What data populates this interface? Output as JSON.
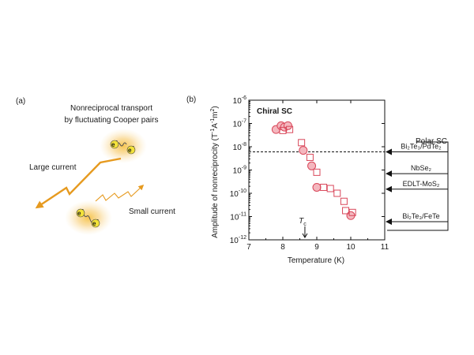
{
  "panel_a": {
    "label": "(a)",
    "title_line1": "Nonreciprocal transport",
    "title_line2": "by fluctuating Cooper pairs",
    "large_current": "Large current",
    "small_current": "Small current",
    "electron": "e",
    "electron_charge": "-"
  },
  "panel_b": {
    "label": "(b)",
    "polar_box_title": "Polar SC",
    "polar_entries": [
      {
        "label": "Bi₂Te₃/PdTe₂",
        "value": 6e-09
      },
      {
        "label": "NbSe₂",
        "value": 7e-10
      },
      {
        "label": "EDLT-MoS₂",
        "value": 1.5e-10
      },
      {
        "label": "Bi₂Te₃/FeTe",
        "value": 6e-12
      }
    ]
  },
  "chart_data": {
    "type": "scatter",
    "title": "",
    "annotation": "Chiral SC",
    "tc_label": "T",
    "tc_subscript": "c",
    "tc_arrow": "↓",
    "tc_value": 8.65,
    "dashed_line_value": 6e-09,
    "xlabel": "Temperature (K)",
    "ylabel_main": "Amplitude of  nonreciprocity  (T",
    "ylabel_units": [
      "T",
      "-1",
      "A",
      "-1",
      "m",
      "2"
    ],
    "xlim": [
      7,
      11
    ],
    "ylim_log10": [
      -12,
      -6
    ],
    "x_ticks": [
      7,
      8,
      9,
      10,
      11
    ],
    "y_tick_exponents": [
      -12,
      -11,
      -10,
      -9,
      -8,
      -7,
      -6
    ],
    "y_tick_base": "10",
    "series": [
      {
        "name": "circles",
        "marker": "circle-filled",
        "points": [
          {
            "x": 7.8,
            "y": 5.5e-08
          },
          {
            "x": 7.95,
            "y": 8e-08
          },
          {
            "x": 8.05,
            "y": 7e-08
          },
          {
            "x": 8.15,
            "y": 8e-08
          },
          {
            "x": 8.6,
            "y": 7e-09
          },
          {
            "x": 8.85,
            "y": 1.5e-09
          },
          {
            "x": 9.0,
            "y": 1.8e-10
          },
          {
            "x": 10.0,
            "y": 1.1e-11
          }
        ]
      },
      {
        "name": "squares",
        "marker": "square-open",
        "points": [
          {
            "x": 8.0,
            "y": 5e-08
          },
          {
            "x": 8.2,
            "y": 5.5e-08
          },
          {
            "x": 8.55,
            "y": 1.5e-08
          },
          {
            "x": 8.8,
            "y": 3.5e-09
          },
          {
            "x": 9.0,
            "y": 8e-10
          },
          {
            "x": 9.2,
            "y": 1.8e-10
          },
          {
            "x": 9.4,
            "y": 1.6e-10
          },
          {
            "x": 9.6,
            "y": 1e-10
          },
          {
            "x": 9.8,
            "y": 4.5e-11
          },
          {
            "x": 9.85,
            "y": 1.8e-11
          },
          {
            "x": 10.05,
            "y": 1.5e-11
          }
        ]
      }
    ]
  }
}
